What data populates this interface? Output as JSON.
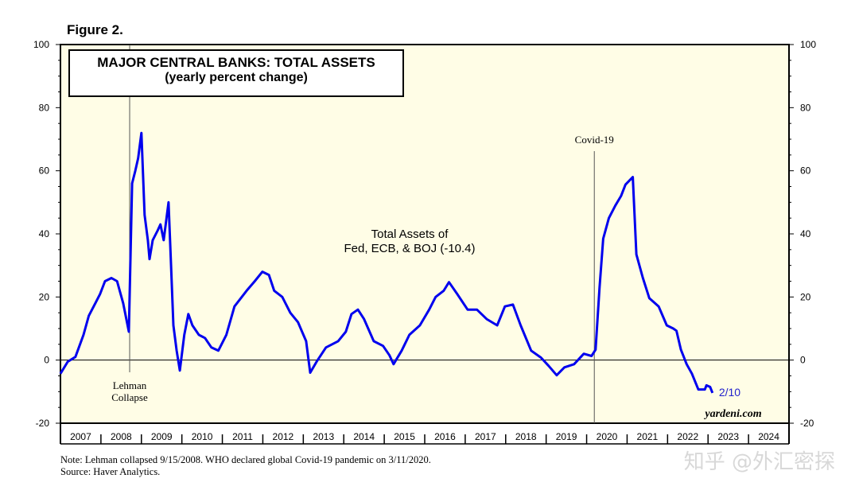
{
  "figure_label": "Figure 2.",
  "watermark": "知乎 @外汇密探",
  "note": "Note: Lehman collapsed 9/15/2008. WHO declared global Covid-19 pandemic on 3/11/2020.",
  "source": "Source: Haver Analytics.",
  "credit": "yardeni.com",
  "colors": {
    "background": "#fffde6",
    "line": "#0000ee"
  },
  "chart_data": {
    "type": "line",
    "title": "MAJOR CENTRAL BANKS: TOTAL ASSETS",
    "subtitle": "(yearly percent change)",
    "ylim": [
      -20,
      100
    ],
    "yticks": [
      -20,
      0,
      20,
      40,
      60,
      80,
      100
    ],
    "xlim": [
      2007,
      2025
    ],
    "xtick_labels": [
      "2007",
      "2008",
      "2009",
      "2010",
      "2011",
      "2012",
      "2013",
      "2014",
      "2015",
      "2016",
      "2017",
      "2018",
      "2019",
      "2020",
      "2021",
      "2022",
      "2023",
      "2024"
    ],
    "grid": false,
    "series": [
      {
        "name": "Total Assets of Fed, ECB, & BOJ (-10.4)",
        "label_line1": "Total Assets of",
        "label_line2": "Fed, ECB, & BOJ (-10.4)",
        "end_label": "2/10",
        "x": [
          2007.0,
          2007.18,
          2007.37,
          2007.57,
          2007.7,
          2007.86,
          2007.98,
          2008.1,
          2008.26,
          2008.4,
          2008.55,
          2008.69,
          2008.77,
          2008.85,
          2008.92,
          2009.0,
          2009.08,
          2009.16,
          2009.2,
          2009.28,
          2009.4,
          2009.47,
          2009.55,
          2009.67,
          2009.73,
          2009.79,
          2009.87,
          2009.95,
          2010.06,
          2010.16,
          2010.26,
          2010.42,
          2010.57,
          2010.73,
          2010.9,
          2011.1,
          2011.3,
          2011.6,
          2011.8,
          2011.99,
          2012.15,
          2012.28,
          2012.48,
          2012.68,
          2012.87,
          2013.07,
          2013.17,
          2013.33,
          2013.56,
          2013.86,
          2014.05,
          2014.19,
          2014.35,
          2014.5,
          2014.74,
          2014.97,
          2015.13,
          2015.23,
          2015.43,
          2015.62,
          2015.88,
          2016.11,
          2016.27,
          2016.47,
          2016.6,
          2016.8,
          2017.06,
          2017.29,
          2017.53,
          2017.79,
          2017.98,
          2018.18,
          2018.37,
          2018.63,
          2018.87,
          2019.06,
          2019.26,
          2019.45,
          2019.69,
          2019.93,
          2020.12,
          2020.22,
          2020.32,
          2020.41,
          2020.55,
          2020.71,
          2020.85,
          2020.96,
          2021.14,
          2021.23,
          2021.39,
          2021.55,
          2021.78,
          2021.98,
          2022.14,
          2022.22,
          2022.33,
          2022.47,
          2022.6,
          2022.76,
          2022.92,
          2022.96,
          2023.05,
          2023.11
        ],
        "y": [
          -4.3,
          -0.5,
          1,
          8,
          14,
          18,
          21,
          25,
          26,
          25,
          18,
          9,
          56,
          60,
          64,
          72,
          46,
          38,
          32,
          38,
          41,
          43,
          38,
          50,
          31,
          11,
          3,
          -3.3,
          8,
          14.6,
          11,
          8,
          7,
          4,
          3,
          8,
          17,
          22,
          25,
          28,
          27,
          22,
          20,
          15,
          12,
          6,
          -4,
          -0.5,
          4,
          6,
          9,
          14.6,
          16,
          13,
          6,
          4.5,
          1.5,
          -1.3,
          3,
          8,
          11,
          16,
          20,
          22,
          24.7,
          21,
          16,
          16,
          13,
          11,
          17,
          17.6,
          11,
          3,
          0.8,
          -1.8,
          -4.8,
          -2.3,
          -1.3,
          2,
          1.3,
          3.3,
          23,
          38.5,
          45,
          49,
          52,
          55.6,
          58,
          33.5,
          26,
          19.6,
          17,
          11,
          10,
          9.3,
          3.3,
          -1.3,
          -4.3,
          -9.3,
          -9.3,
          -8,
          -8.5,
          -10.4
        ]
      }
    ],
    "annotations": [
      {
        "text": "Lehman",
        "text2": "Collapse",
        "x": 2008.71
      },
      {
        "text": "Covid-19",
        "x": 2020.19
      }
    ]
  }
}
